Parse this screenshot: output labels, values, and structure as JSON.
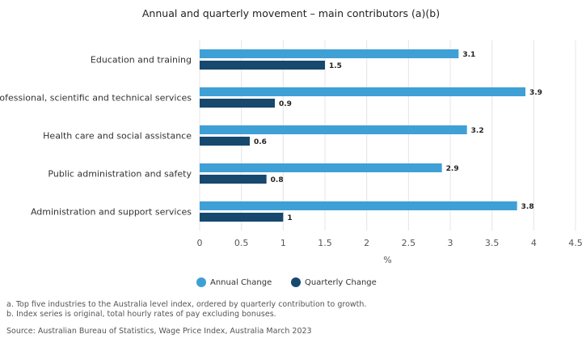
{
  "chart_data": {
    "type": "bar",
    "orientation": "horizontal",
    "title": "Annual and quarterly movement – main contributors (a)(b)",
    "xlabel": "%",
    "categories": [
      "Education and training",
      "Professional, scientific and technical services",
      "Health care and social assistance",
      "Public administration and safety",
      "Administration and support services"
    ],
    "series": [
      {
        "name": "Annual Change",
        "color": "#3fa0d6",
        "values": [
          3.1,
          3.9,
          3.2,
          2.9,
          3.8
        ]
      },
      {
        "name": "Quarterly Change",
        "color": "#17486e",
        "values": [
          1.5,
          0.9,
          0.6,
          0.8,
          1
        ]
      }
    ],
    "xlim": [
      0,
      4.5
    ],
    "xticks": [
      "0",
      "0.5",
      "1",
      "1.5",
      "2",
      "2.5",
      "3",
      "3.5",
      "4",
      "4.5"
    ],
    "grid": true,
    "legend_position": "bottom"
  },
  "legend": {
    "annual_label": "Annual Change",
    "quarterly_label": "Quarterly Change"
  },
  "notes": {
    "a": "a. Top five industries to the Australia level index, ordered by quarterly contribution to growth.",
    "b": "b. Index series is original, total hourly rates of pay excluding bonuses.",
    "source": "Source: Australian Bureau of Statistics, Wage Price Index, Australia March 2023"
  }
}
